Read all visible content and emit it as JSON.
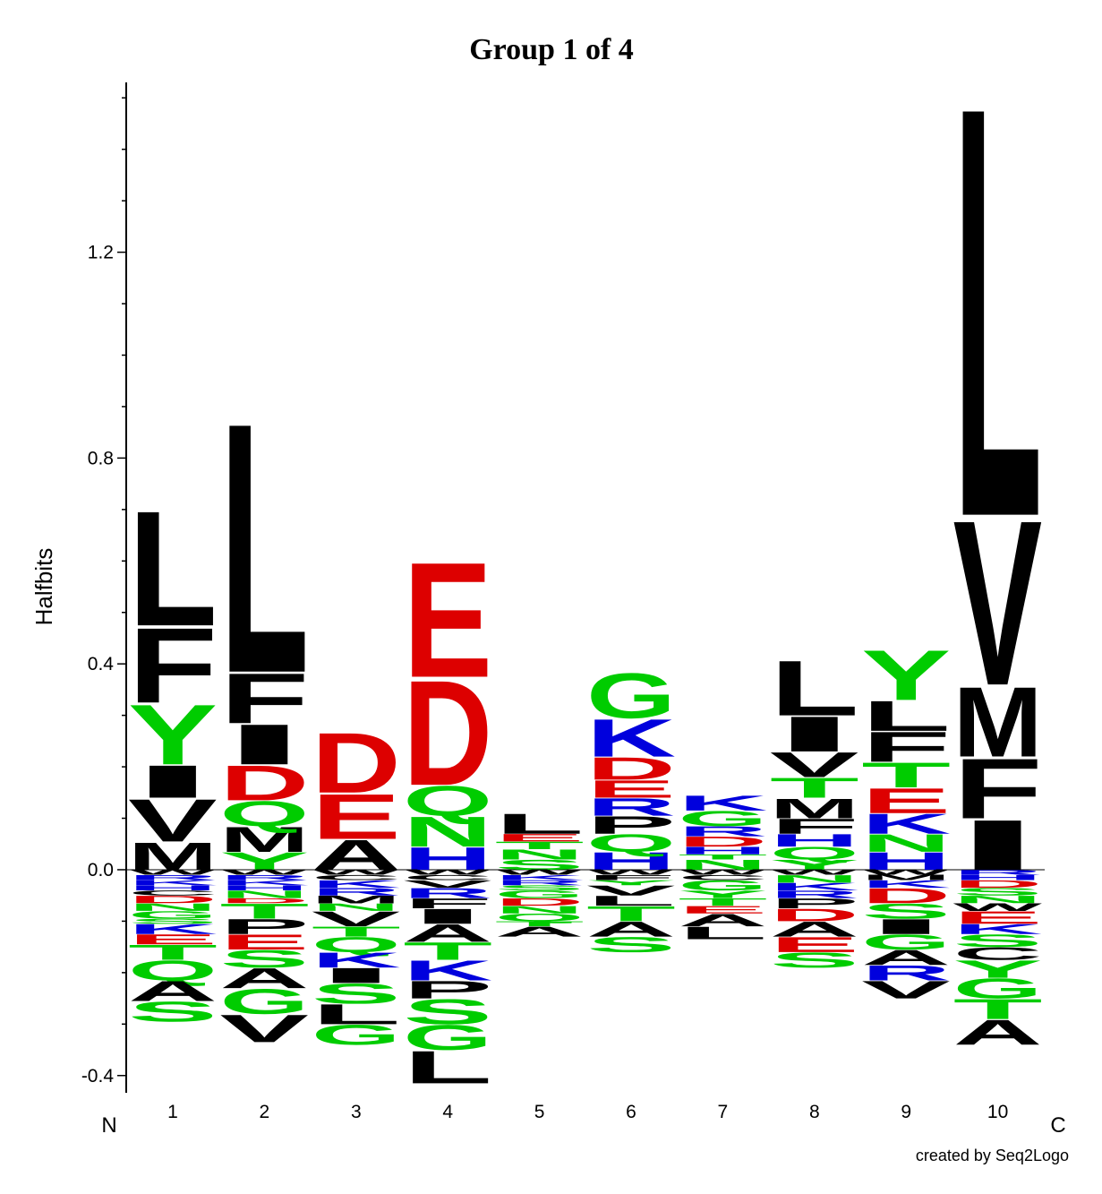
{
  "chart_data": {
    "type": "sequence-logo",
    "title": "Group 1 of 4",
    "ylabel": "Halfbits",
    "ylim": [
      -0.43,
      1.53
    ],
    "yticks": [
      -0.4,
      0.0,
      0.4,
      0.8,
      1.2
    ],
    "ytick_labels": [
      "-0.4",
      "0.0",
      "0.4",
      "0.8",
      "1.2"
    ],
    "ytick_minor_step": 0.1,
    "positions": [
      "1",
      "2",
      "3",
      "4",
      "5",
      "6",
      "7",
      "8",
      "9",
      "10"
    ],
    "n_label": "N",
    "c_label": "C",
    "credit": "created by Seq2Logo",
    "colors": {
      "hydrophobic": "#000000",
      "polar": "#00cc00",
      "acidic": "#dd0000",
      "basic": "#0000dd"
    },
    "residue_colors": {
      "A": "#000000",
      "V": "#000000",
      "L": "#000000",
      "I": "#000000",
      "M": "#000000",
      "F": "#000000",
      "W": "#000000",
      "P": "#000000",
      "C": "#000000",
      "G": "#00cc00",
      "S": "#00cc00",
      "T": "#00cc00",
      "Y": "#00cc00",
      "N": "#00cc00",
      "Q": "#00cc00",
      "D": "#dd0000",
      "E": "#dd0000",
      "K": "#0000dd",
      "R": "#0000dd",
      "H": "#0000dd"
    },
    "columns": [
      {
        "position": "1",
        "positive": [
          [
            "M",
            0.055
          ],
          [
            "V",
            0.085
          ],
          [
            "I",
            0.065
          ],
          [
            "Y",
            0.12
          ],
          [
            "F",
            0.15
          ],
          [
            "L",
            0.23
          ]
        ],
        "negative": [
          [
            "W",
            0.01
          ],
          [
            "R",
            0.01
          ],
          [
            "K",
            0.01
          ],
          [
            "H",
            0.01
          ],
          [
            "C",
            0.01
          ],
          [
            "D",
            0.015
          ],
          [
            "N",
            0.015
          ],
          [
            "G",
            0.015
          ],
          [
            "S",
            0.01
          ],
          [
            "K",
            0.02
          ],
          [
            "E",
            0.02
          ],
          [
            "T",
            0.03
          ],
          [
            "Q",
            0.04
          ],
          [
            "A",
            0.04
          ],
          [
            "S",
            0.04
          ]
        ]
      },
      {
        "position": "2",
        "positive": [
          [
            "Y",
            0.035
          ],
          [
            "M",
            0.05
          ],
          [
            "Q",
            0.05
          ],
          [
            "D",
            0.07
          ],
          [
            "I",
            0.08
          ],
          [
            "F",
            0.1
          ],
          [
            "L",
            0.5
          ]
        ],
        "negative": [
          [
            "W",
            0.01
          ],
          [
            "R",
            0.01
          ],
          [
            "K",
            0.01
          ],
          [
            "H",
            0.01
          ],
          [
            "N",
            0.015
          ],
          [
            "D",
            0.01
          ],
          [
            "T",
            0.03
          ],
          [
            "P",
            0.03
          ],
          [
            "E",
            0.03
          ],
          [
            "S",
            0.035
          ],
          [
            "A",
            0.04
          ],
          [
            "G",
            0.05
          ],
          [
            "V",
            0.055
          ]
        ]
      },
      {
        "position": "3",
        "positive": [
          [
            "A",
            0.06
          ],
          [
            "E",
            0.09
          ],
          [
            "D",
            0.12
          ]
        ],
        "negative": [
          [
            "W",
            0.01
          ],
          [
            "C",
            0.01
          ],
          [
            "K",
            0.015
          ],
          [
            "R",
            0.015
          ],
          [
            "M",
            0.015
          ],
          [
            "N",
            0.015
          ],
          [
            "V",
            0.03
          ],
          [
            "T",
            0.02
          ],
          [
            "Q",
            0.03
          ],
          [
            "K",
            0.03
          ],
          [
            "I",
            0.03
          ],
          [
            "S",
            0.04
          ],
          [
            "L",
            0.04
          ],
          [
            "G",
            0.04
          ]
        ]
      },
      {
        "position": "4",
        "positive": [
          [
            "H",
            0.045
          ],
          [
            "N",
            0.06
          ],
          [
            "Q",
            0.06
          ],
          [
            "D",
            0.21
          ],
          [
            "E",
            0.23
          ]
        ],
        "negative": [
          [
            "W",
            0.01
          ],
          [
            "C",
            0.01
          ],
          [
            "V",
            0.015
          ],
          [
            "R",
            0.02
          ],
          [
            "F",
            0.02
          ],
          [
            "I",
            0.03
          ],
          [
            "A",
            0.035
          ],
          [
            "T",
            0.035
          ],
          [
            "K",
            0.04
          ],
          [
            "P",
            0.035
          ],
          [
            "S",
            0.05
          ],
          [
            "G",
            0.05
          ],
          [
            "L",
            0.065
          ]
        ]
      },
      {
        "position": "5",
        "positive": [
          [
            "S",
            0.02
          ],
          [
            "N",
            0.02
          ],
          [
            "T",
            0.015
          ],
          [
            "E",
            0.015
          ],
          [
            "L",
            0.04
          ]
        ],
        "negative": [
          [
            "W",
            0.01
          ],
          [
            "K",
            0.01
          ],
          [
            "R",
            0.01
          ],
          [
            "S",
            0.01
          ],
          [
            "G",
            0.015
          ],
          [
            "D",
            0.015
          ],
          [
            "N",
            0.015
          ],
          [
            "Q",
            0.015
          ],
          [
            "T",
            0.01
          ],
          [
            "A",
            0.02
          ]
        ]
      },
      {
        "position": "6",
        "positive": [
          [
            "H",
            0.035
          ],
          [
            "Q",
            0.035
          ],
          [
            "P",
            0.035
          ],
          [
            "R",
            0.035
          ],
          [
            "E",
            0.035
          ],
          [
            "D",
            0.045
          ],
          [
            "K",
            0.075
          ],
          [
            "G",
            0.09
          ]
        ],
        "negative": [
          [
            "W",
            0.01
          ],
          [
            "F",
            0.01
          ],
          [
            "Y",
            0.01
          ],
          [
            "V",
            0.02
          ],
          [
            "L",
            0.02
          ],
          [
            "T",
            0.03
          ],
          [
            "A",
            0.03
          ],
          [
            "S",
            0.03
          ]
        ]
      },
      {
        "position": "7",
        "positive": [
          [
            "N",
            0.02
          ],
          [
            "T",
            0.01
          ],
          [
            "H",
            0.015
          ],
          [
            "D",
            0.02
          ],
          [
            "R",
            0.02
          ],
          [
            "G",
            0.03
          ],
          [
            "K",
            0.03
          ]
        ],
        "negative": [
          [
            "W",
            0.01
          ],
          [
            "C",
            0.01
          ],
          [
            "G",
            0.02
          ],
          [
            "Y",
            0.015
          ],
          [
            "T",
            0.015
          ],
          [
            "E",
            0.015
          ],
          [
            "A",
            0.025
          ],
          [
            "L",
            0.025
          ]
        ]
      },
      {
        "position": "8",
        "positive": [
          [
            "Y",
            0.02
          ],
          [
            "Q",
            0.025
          ],
          [
            "H",
            0.025
          ],
          [
            "F",
            0.03
          ],
          [
            "M",
            0.04
          ],
          [
            "T",
            0.04
          ],
          [
            "V",
            0.05
          ],
          [
            "I",
            0.07
          ],
          [
            "L",
            0.11
          ]
        ],
        "negative": [
          [
            "W",
            0.01
          ],
          [
            "N",
            0.015
          ],
          [
            "K",
            0.015
          ],
          [
            "R",
            0.015
          ],
          [
            "P",
            0.02
          ],
          [
            "D",
            0.025
          ],
          [
            "A",
            0.03
          ],
          [
            "E",
            0.03
          ],
          [
            "S",
            0.03
          ]
        ]
      },
      {
        "position": "9",
        "positive": [
          [
            "H",
            0.035
          ],
          [
            "N",
            0.035
          ],
          [
            "K",
            0.04
          ],
          [
            "E",
            0.05
          ],
          [
            "T",
            0.05
          ],
          [
            "F",
            0.06
          ],
          [
            "L",
            0.06
          ],
          [
            "Y",
            0.1
          ]
        ],
        "negative": [
          [
            "W",
            0.01
          ],
          [
            "M",
            0.01
          ],
          [
            "K",
            0.015
          ],
          [
            "D",
            0.03
          ],
          [
            "S",
            0.03
          ],
          [
            "I",
            0.03
          ],
          [
            "G",
            0.03
          ],
          [
            "A",
            0.03
          ],
          [
            "R",
            0.03
          ],
          [
            "V",
            0.035
          ]
        ]
      },
      {
        "position": "10",
        "positive": [
          [
            "I",
            0.1
          ],
          [
            "F",
            0.12
          ],
          [
            "M",
            0.14
          ],
          [
            "V",
            0.33
          ],
          [
            "L",
            0.82
          ]
        ],
        "negative": [
          [
            "R",
            0.01
          ],
          [
            "H",
            0.01
          ],
          [
            "D",
            0.015
          ],
          [
            "S",
            0.015
          ],
          [
            "N",
            0.015
          ],
          [
            "W",
            0.015
          ],
          [
            "E",
            0.025
          ],
          [
            "K",
            0.02
          ],
          [
            "S",
            0.025
          ],
          [
            "C",
            0.025
          ],
          [
            "Y",
            0.035
          ],
          [
            "G",
            0.04
          ],
          [
            "T",
            0.04
          ],
          [
            "A",
            0.05
          ]
        ]
      }
    ]
  }
}
